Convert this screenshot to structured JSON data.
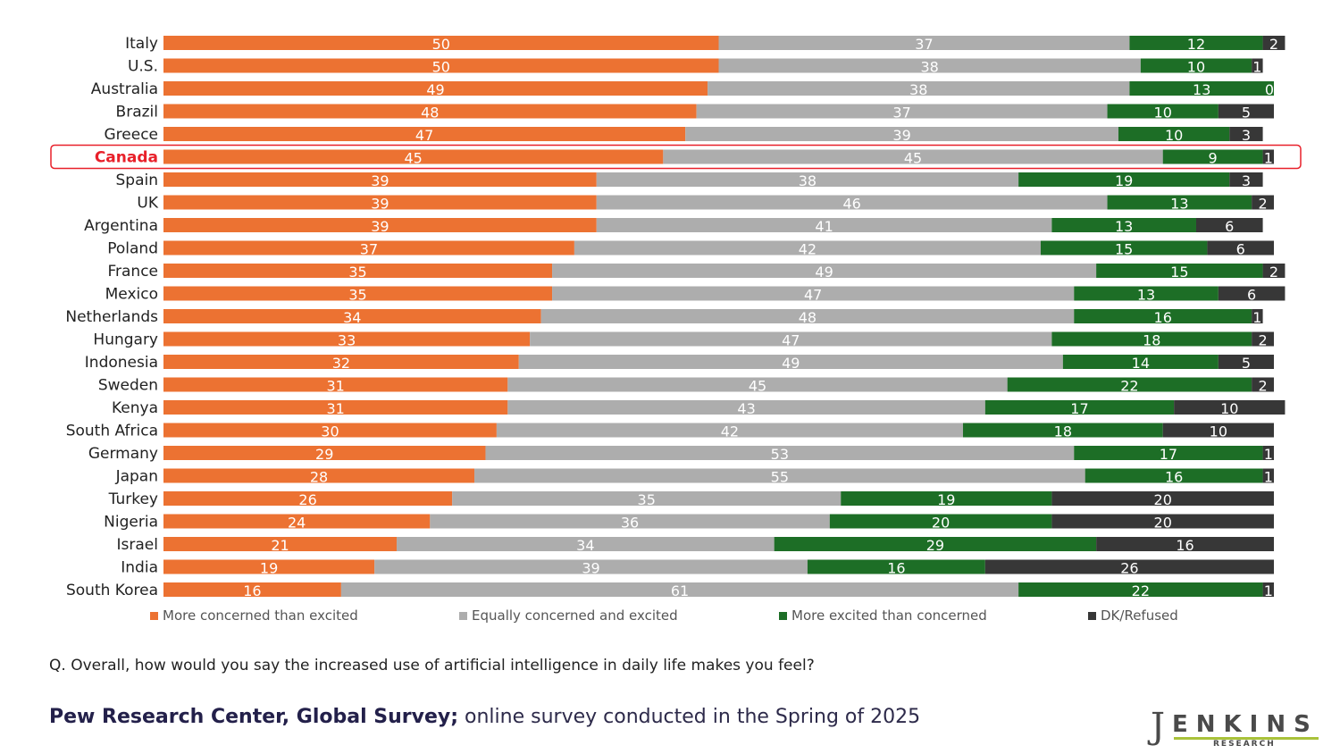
{
  "colors": {
    "concerned": "#ec7232",
    "equal": "#adadad",
    "excited": "#1d6e26",
    "dk": "#373737",
    "highlight": "#e8202a"
  },
  "highlight_country": "Canada",
  "chart_data": {
    "type": "bar",
    "orientation": "horizontal",
    "stacked": true,
    "units": "percent",
    "xlim": [
      0,
      100
    ],
    "categories": [
      "Italy",
      "U.S.",
      "Australia",
      "Brazil",
      "Greece",
      "Canada",
      "Spain",
      "UK",
      "Argentina",
      "Poland",
      "France",
      "Mexico",
      "Netherlands",
      "Hungary",
      "Indonesia",
      "Sweden",
      "Kenya",
      "South Africa",
      "Germany",
      "Japan",
      "Turkey",
      "Nigeria",
      "Israel",
      "India",
      "South Korea"
    ],
    "series": [
      {
        "name": "More concerned than excited",
        "color_key": "concerned",
        "values": [
          50,
          50,
          49,
          48,
          47,
          45,
          39,
          39,
          39,
          37,
          35,
          35,
          34,
          33,
          32,
          31,
          31,
          30,
          29,
          28,
          26,
          24,
          21,
          19,
          16
        ]
      },
      {
        "name": "Equally concerned and excited",
        "color_key": "equal",
        "values": [
          37,
          38,
          38,
          37,
          39,
          45,
          38,
          46,
          41,
          42,
          49,
          47,
          48,
          47,
          49,
          45,
          43,
          42,
          53,
          55,
          35,
          36,
          34,
          39,
          61
        ]
      },
      {
        "name": "More excited than concerned",
        "color_key": "excited",
        "values": [
          12,
          10,
          13,
          10,
          10,
          9,
          19,
          13,
          13,
          15,
          15,
          13,
          16,
          18,
          14,
          22,
          17,
          18,
          17,
          16,
          19,
          20,
          29,
          16,
          22
        ]
      },
      {
        "name": "DK/Refused",
        "color_key": "dk",
        "values": [
          2,
          1,
          0,
          5,
          3,
          1,
          3,
          2,
          6,
          6,
          2,
          6,
          1,
          2,
          5,
          2,
          10,
          10,
          1,
          1,
          20,
          20,
          16,
          26,
          1
        ]
      }
    ],
    "legend_position": "bottom"
  },
  "legend": [
    {
      "label": "More concerned than excited",
      "color_key": "concerned"
    },
    {
      "label": "Equally concerned and excited",
      "color_key": "equal"
    },
    {
      "label": "More excited than concerned",
      "color_key": "excited"
    },
    {
      "label": "DK/Refused",
      "color_key": "dk"
    }
  ],
  "question": "Q. Overall, how would you say the increased use of artificial intelligence in daily life makes you feel?",
  "source": {
    "strong": "Pew Research Center, Global Survey;",
    "rest": " online survey conducted in the Spring of 2025"
  },
  "logo": {
    "mark": "J",
    "main": "ENKINS",
    "sub": "RESEARCH"
  }
}
